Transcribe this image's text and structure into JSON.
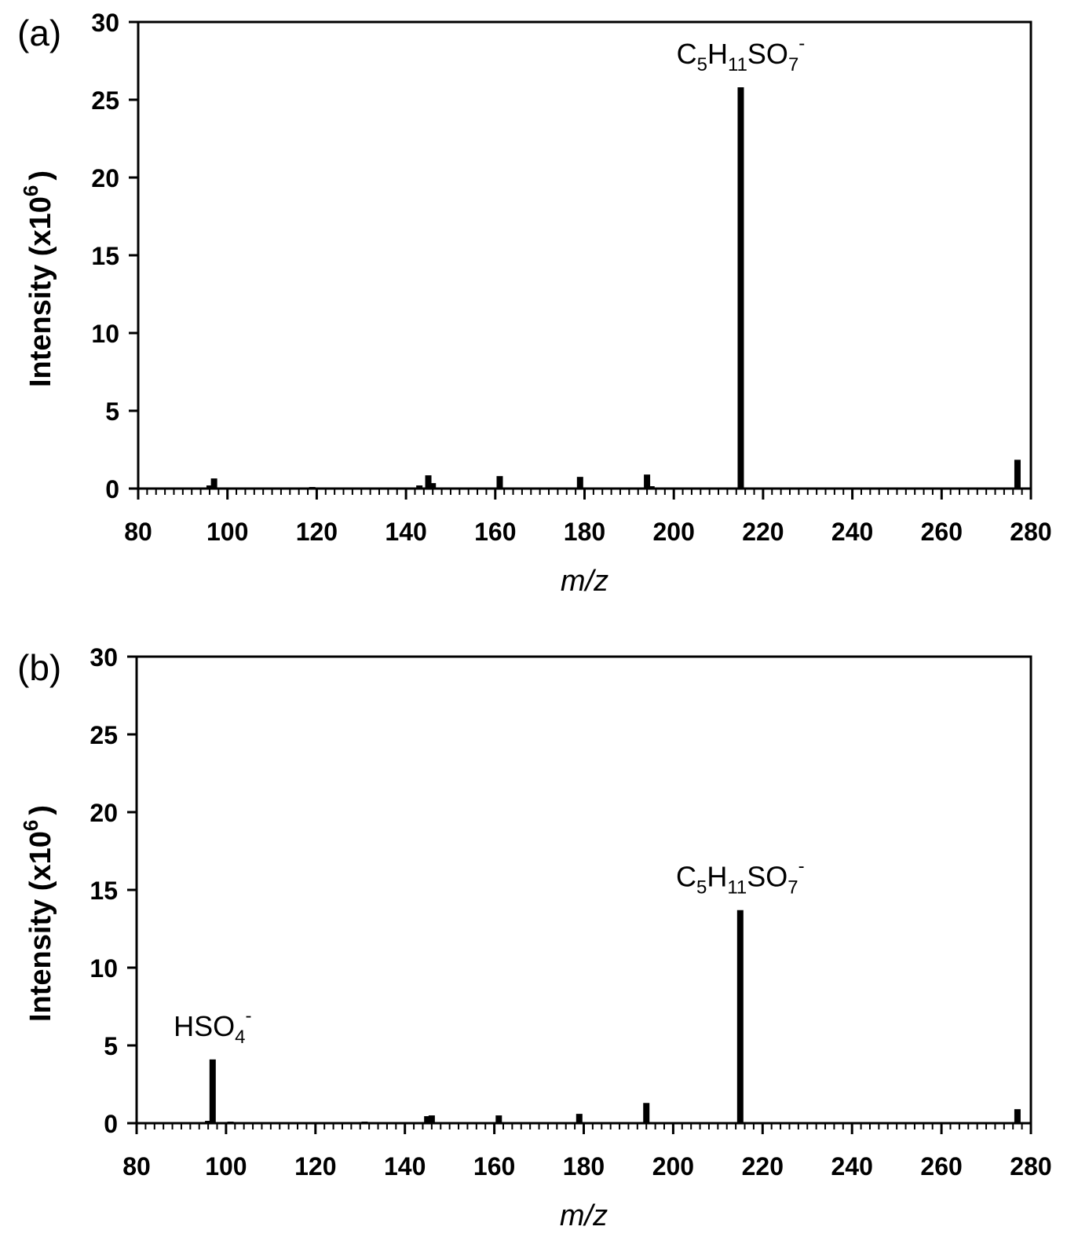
{
  "chart_data": [
    {
      "type": "bar",
      "panel_label": "(a)",
      "xlabel": "m/z",
      "ylabel": "Intensity (x10",
      "ylabel_exponent": "6",
      "ylabel_close": ")",
      "xlim": [
        80,
        280
      ],
      "ylim": [
        0,
        30
      ],
      "xticks": [
        80,
        100,
        120,
        140,
        160,
        180,
        200,
        220,
        240,
        260,
        280
      ],
      "yticks": [
        0,
        5,
        10,
        15,
        20,
        25,
        30
      ],
      "peaks": [
        {
          "x": 96,
          "y": 0.2
        },
        {
          "x": 97,
          "y": 0.65
        },
        {
          "x": 119,
          "y": 0.1
        },
        {
          "x": 143,
          "y": 0.2
        },
        {
          "x": 145,
          "y": 0.85
        },
        {
          "x": 146,
          "y": 0.35
        },
        {
          "x": 161,
          "y": 0.8
        },
        {
          "x": 179,
          "y": 0.75
        },
        {
          "x": 194,
          "y": 0.9
        },
        {
          "x": 195,
          "y": 0.15
        },
        {
          "x": 215,
          "y": 25.8
        },
        {
          "x": 277,
          "y": 1.85
        }
      ],
      "annotations": [
        {
          "x": 215,
          "y": 25.8,
          "parts": [
            [
              "C",
              ""
            ],
            [
              "5",
              "sub"
            ],
            [
              "H",
              ""
            ],
            [
              "11",
              "sub"
            ],
            [
              "SO",
              ""
            ],
            [
              "7",
              "sub"
            ],
            [
              "-",
              "sup"
            ]
          ]
        }
      ]
    },
    {
      "type": "bar",
      "panel_label": "(b)",
      "xlabel": "m/z",
      "ylabel": "Intensity (x10",
      "ylabel_exponent": "6",
      "ylabel_close": ")",
      "xlim": [
        80,
        280
      ],
      "ylim": [
        0,
        30
      ],
      "xticks": [
        80,
        100,
        120,
        140,
        160,
        180,
        200,
        220,
        240,
        260,
        280
      ],
      "yticks": [
        0,
        5,
        10,
        15,
        20,
        25,
        30
      ],
      "peaks": [
        {
          "x": 96,
          "y": 0.15
        },
        {
          "x": 97,
          "y": 4.1
        },
        {
          "x": 101,
          "y": 0.1
        },
        {
          "x": 131,
          "y": 0.1
        },
        {
          "x": 145,
          "y": 0.45
        },
        {
          "x": 146,
          "y": 0.5
        },
        {
          "x": 161,
          "y": 0.5
        },
        {
          "x": 179,
          "y": 0.6
        },
        {
          "x": 194,
          "y": 1.3
        },
        {
          "x": 215,
          "y": 13.7
        },
        {
          "x": 277,
          "y": 0.9
        }
      ],
      "annotations": [
        {
          "x": 97,
          "y": 4.1,
          "parts": [
            [
              "HSO",
              ""
            ],
            [
              "4",
              "sub"
            ],
            [
              "-",
              "sup"
            ]
          ]
        },
        {
          "x": 215,
          "y": 13.7,
          "parts": [
            [
              "C",
              ""
            ],
            [
              "5",
              "sub"
            ],
            [
              "H",
              ""
            ],
            [
              "11",
              "sub"
            ],
            [
              "SO",
              ""
            ],
            [
              "7",
              "sub"
            ],
            [
              "-",
              "sup"
            ]
          ]
        }
      ]
    }
  ]
}
